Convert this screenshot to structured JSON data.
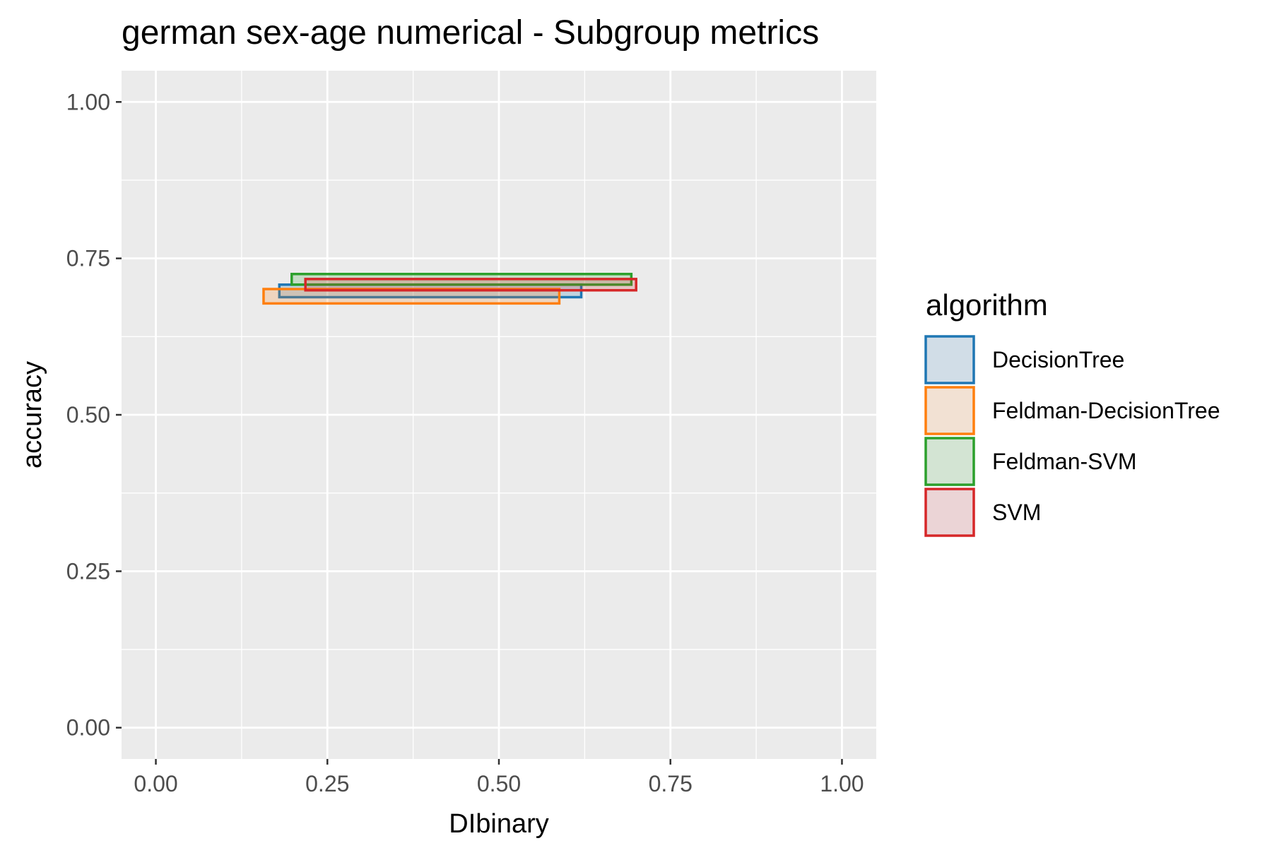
{
  "chart_data": {
    "type": "rect-range",
    "title": "german sex-age numerical - Subgroup metrics",
    "xlabel": "DIbinary",
    "ylabel": "accuracy",
    "xlim": [
      -0.05,
      1.05
    ],
    "ylim": [
      -0.05,
      1.05
    ],
    "x_ticks": [
      "0.00",
      "0.25",
      "0.50",
      "0.75",
      "1.00"
    ],
    "y_ticks": [
      "0.00",
      "0.25",
      "0.50",
      "0.75",
      "1.00"
    ],
    "grid": true,
    "legend": {
      "title": "algorithm",
      "position": "right",
      "entries": [
        {
          "name": "DecisionTree",
          "color": "#1f77b4",
          "fill": "#d1dde7"
        },
        {
          "name": "Feldman-DecisionTree",
          "color": "#ff7f0e",
          "fill": "#f2e1d3"
        },
        {
          "name": "Feldman-SVM",
          "color": "#2ca02c",
          "fill": "#d3e4d3"
        },
        {
          "name": "SVM",
          "color": "#d62728",
          "fill": "#ebd4d6"
        }
      ]
    },
    "series": [
      {
        "name": "DecisionTree",
        "x_range": [
          0.18,
          0.62
        ],
        "y_range": [
          0.688,
          0.708
        ]
      },
      {
        "name": "Feldman-DecisionTree",
        "x_range": [
          0.157,
          0.588
        ],
        "y_range": [
          0.678,
          0.701
        ]
      },
      {
        "name": "Feldman-SVM",
        "x_range": [
          0.198,
          0.693
        ],
        "y_range": [
          0.708,
          0.725
        ]
      },
      {
        "name": "SVM",
        "x_range": [
          0.218,
          0.7
        ],
        "y_range": [
          0.699,
          0.717
        ]
      }
    ]
  },
  "colors": {
    "panel_background": "#ebebeb",
    "grid_line": "#ffffff",
    "tick_color": "#333333"
  }
}
